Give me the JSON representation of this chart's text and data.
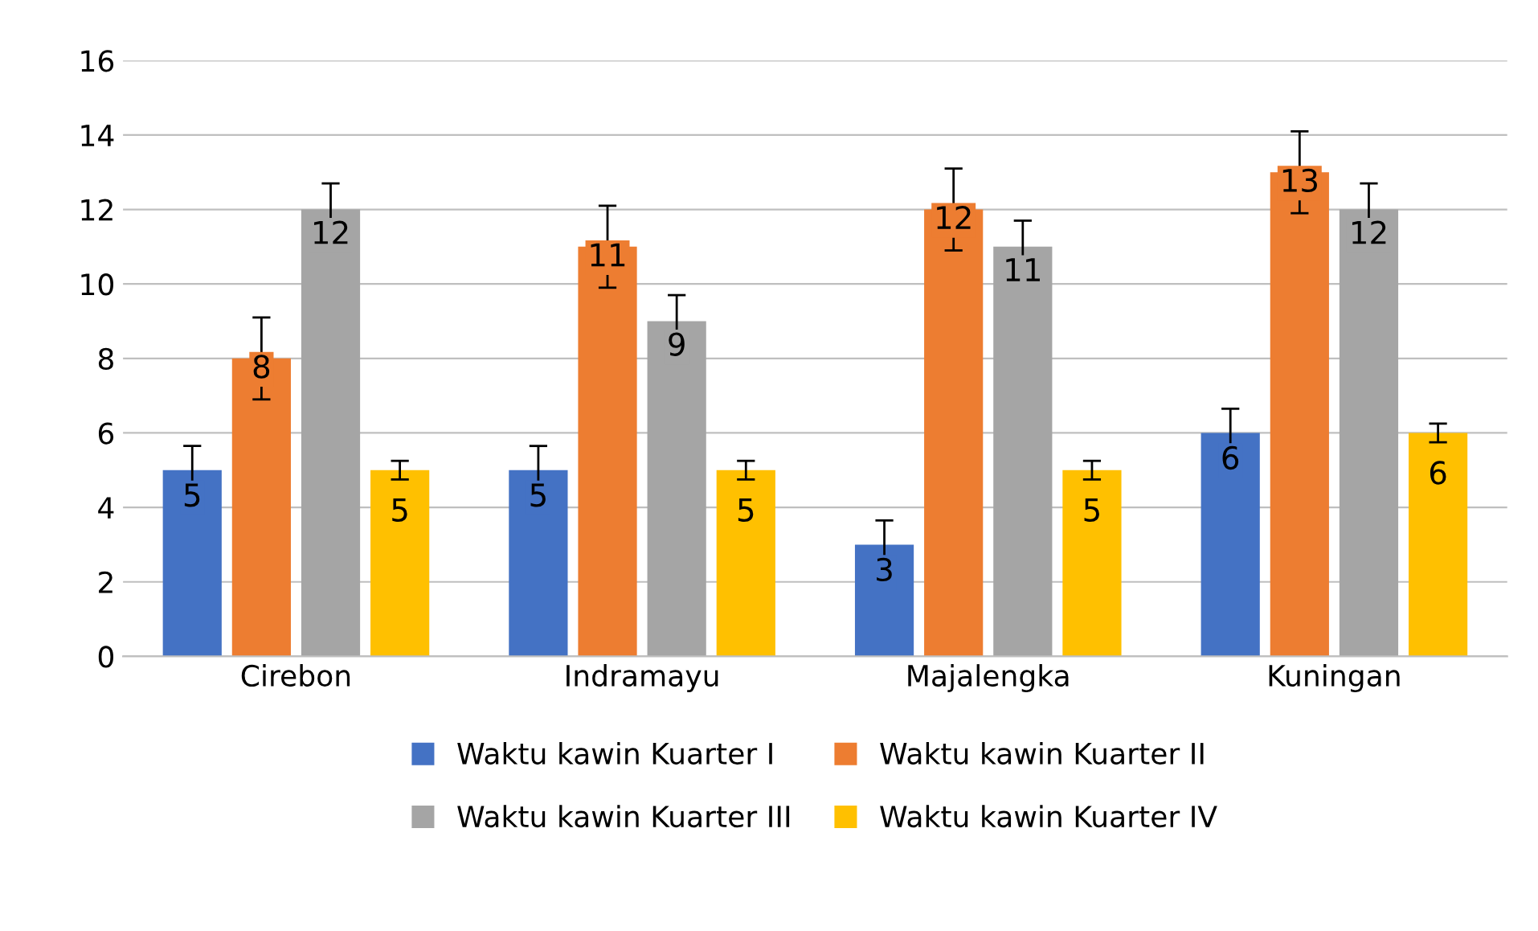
{
  "chart_data": {
    "type": "bar",
    "categories": [
      "Cirebon",
      "Indramayu",
      "Majalengka",
      "Kuningan"
    ],
    "series": [
      {
        "name": "Waktu kawin Kuarter I",
        "color": "#4472c4",
        "values": [
          5,
          5,
          3,
          6
        ],
        "errors": [
          0.65,
          0.65,
          0.65,
          0.65
        ]
      },
      {
        "name": "Waktu kawin Kuarter II",
        "color": "#ed7d31",
        "values": [
          8,
          11,
          12,
          13
        ],
        "errors": [
          1.1,
          1.1,
          1.1,
          1.1
        ]
      },
      {
        "name": "Waktu kawin Kuarter III",
        "color": "#a5a5a5",
        "values": [
          12,
          9,
          11,
          12
        ],
        "errors": [
          0.7,
          0.7,
          0.7,
          0.7
        ]
      },
      {
        "name": "Waktu kawin Kuarter IV",
        "color": "#ffc000",
        "values": [
          5,
          5,
          5,
          6
        ],
        "errors": [
          0.25,
          0.25,
          0.25,
          0.25
        ]
      }
    ],
    "ylim": [
      0,
      16
    ],
    "yticks": [
      0,
      2,
      4,
      6,
      8,
      10,
      12,
      14,
      16
    ],
    "grid": "y",
    "legend": "bottom",
    "data_labels": true
  }
}
